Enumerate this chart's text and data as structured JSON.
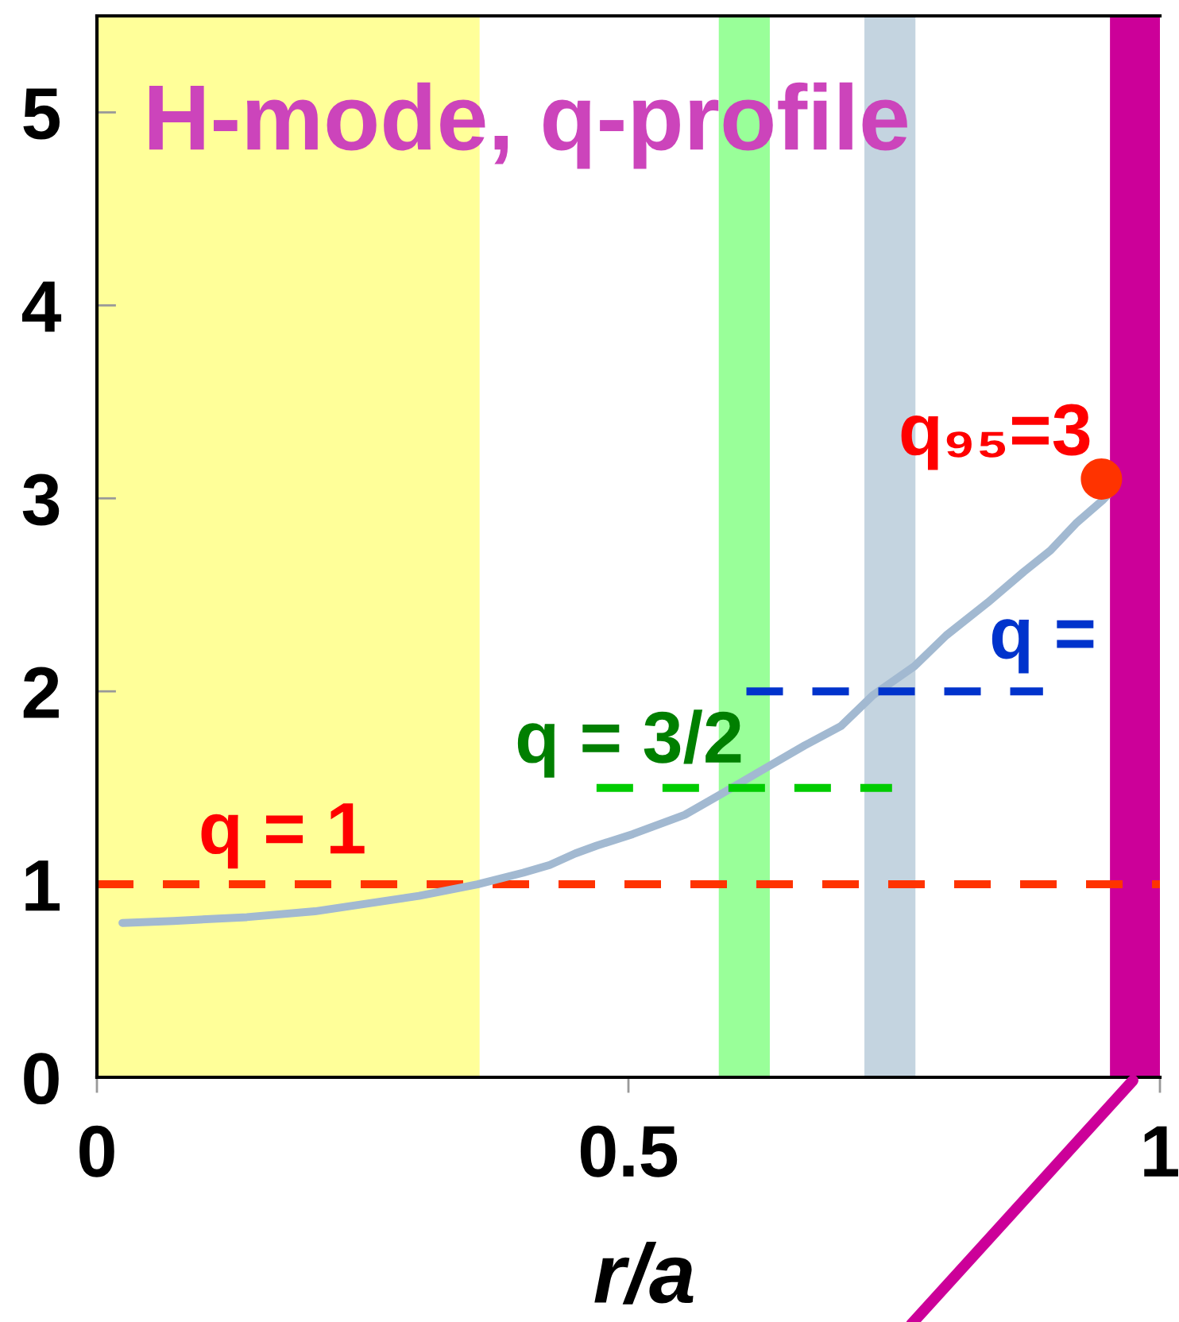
{
  "chart_data": {
    "type": "line",
    "title": "H-mode, q-profile",
    "xlabel": "r/a",
    "xlim": [
      0,
      1
    ],
    "xticks": [
      0,
      0.5,
      1
    ],
    "ylim": [
      0,
      5.5
    ],
    "yticks": [
      0,
      1,
      2,
      3,
      4,
      5
    ],
    "series": [
      {
        "color": "#a2b9d1",
        "x": [
          0.024,
          0.072,
          0.141,
          0.205,
          0.254,
          0.303,
          0.358,
          0.401,
          0.426,
          0.45,
          0.47,
          0.504,
          0.553,
          0.588,
          0.622,
          0.666,
          0.7,
          0.73,
          0.769,
          0.799,
          0.838,
          0.872,
          0.897,
          0.921,
          0.946,
          0.953
        ],
        "values": [
          0.8,
          0.81,
          0.83,
          0.86,
          0.9,
          0.94,
          1.0,
          1.06,
          1.1,
          1.16,
          1.2,
          1.26,
          1.36,
          1.47,
          1.58,
          1.72,
          1.82,
          1.98,
          2.13,
          2.29,
          2.46,
          2.62,
          2.73,
          2.87,
          2.99,
          3.03
        ]
      },
      {
        "name": "q = 3/2",
        "color": "#00cc00",
        "line_style": "dashed",
        "x": [
          0.47,
          0.748
        ],
        "values": [
          1.5,
          1.5
        ]
      },
      {
        "name": "q =",
        "color": "#0033cc",
        "line_style": "dashed",
        "x": [
          0.611,
          0.89
        ],
        "values": [
          2,
          2
        ]
      },
      {
        "type": "scatter",
        "name": "q₉₅=3",
        "color": "#ff3300",
        "marker": "circle",
        "x": [
          0.945
        ],
        "values": [
          3.1
        ]
      }
    ],
    "ref_lines": [
      {
        "axis": "y",
        "value": 1,
        "label": "q = 1",
        "color": "#ff3300",
        "line_style": "dashed"
      }
    ],
    "bands": [
      {
        "axis": "x",
        "from": 0,
        "to": 0.36,
        "color": "#ffff99"
      },
      {
        "axis": "x",
        "from": 0.585,
        "to": 0.633,
        "color": "#99ff99"
      },
      {
        "axis": "x",
        "from": 0.722,
        "to": 0.77,
        "color": "#c4d4e0"
      },
      {
        "axis": "x",
        "from": 0.953,
        "to": 1,
        "color": "#cc0099"
      }
    ]
  }
}
